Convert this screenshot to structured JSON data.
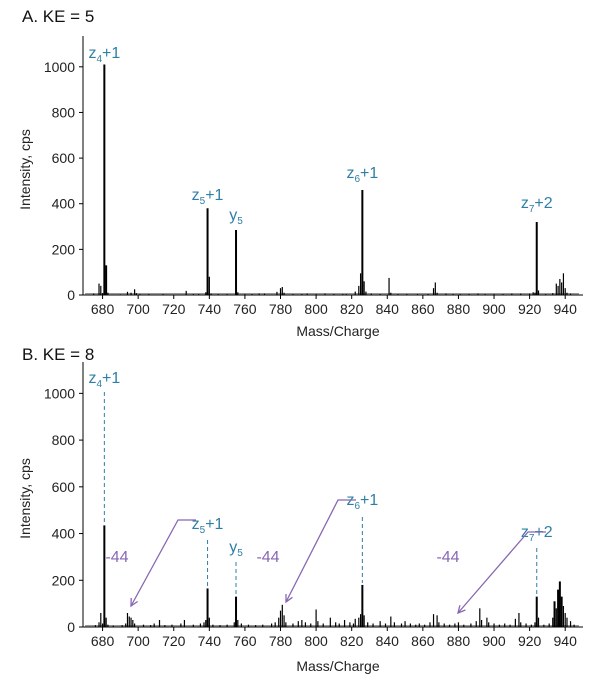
{
  "colors": {
    "annotation": "#2e7fa6",
    "loss": "#8767b4",
    "axis": "#000000",
    "peaks": "#000000"
  },
  "chart_data": [
    {
      "type": "bar",
      "title": "A. KE = 5",
      "xlabel": "Mass/Charge",
      "ylabel": "Intensity, cps",
      "xlim": [
        669,
        950
      ],
      "ylim": [
        0,
        1100
      ],
      "xticks": [
        680,
        700,
        720,
        740,
        760,
        780,
        800,
        820,
        840,
        860,
        880,
        900,
        920,
        940
      ],
      "yticks": [
        0,
        200,
        400,
        600,
        800,
        1000
      ],
      "grid": false,
      "peaks": [
        [
          675,
          6
        ],
        [
          678,
          50
        ],
        [
          679,
          40
        ],
        [
          680,
          8
        ],
        [
          681,
          1010
        ],
        [
          682,
          130
        ],
        [
          683,
          10
        ],
        [
          690,
          3
        ],
        [
          694,
          14
        ],
        [
          696,
          10
        ],
        [
          698,
          25
        ],
        [
          699,
          8
        ],
        [
          701,
          4
        ],
        [
          706,
          4
        ],
        [
          714,
          4
        ],
        [
          727,
          18
        ],
        [
          731,
          4
        ],
        [
          734,
          4
        ],
        [
          738,
          12
        ],
        [
          739,
          380
        ],
        [
          740,
          80
        ],
        [
          741,
          6
        ],
        [
          745,
          4
        ],
        [
          750,
          4
        ],
        [
          755,
          285
        ],
        [
          756,
          12
        ],
        [
          760,
          4
        ],
        [
          764,
          4
        ],
        [
          768,
          6
        ],
        [
          771,
          6
        ],
        [
          778,
          14
        ],
        [
          780,
          30
        ],
        [
          781,
          35
        ],
        [
          782,
          10
        ],
        [
          787,
          4
        ],
        [
          792,
          4
        ],
        [
          795,
          6
        ],
        [
          800,
          4
        ],
        [
          805,
          6
        ],
        [
          810,
          4
        ],
        [
          815,
          4
        ],
        [
          817,
          4
        ],
        [
          822,
          15
        ],
        [
          824,
          40
        ],
        [
          825,
          95
        ],
        [
          826,
          460
        ],
        [
          827,
          60
        ],
        [
          828,
          15
        ],
        [
          831,
          6
        ],
        [
          836,
          4
        ],
        [
          841,
          75
        ],
        [
          842,
          10
        ],
        [
          846,
          4
        ],
        [
          851,
          4
        ],
        [
          857,
          4
        ],
        [
          863,
          4
        ],
        [
          866,
          30
        ],
        [
          867,
          55
        ],
        [
          868,
          10
        ],
        [
          873,
          6
        ],
        [
          877,
          4
        ],
        [
          881,
          4
        ],
        [
          886,
          4
        ],
        [
          891,
          6
        ],
        [
          895,
          4
        ],
        [
          900,
          4
        ],
        [
          905,
          4
        ],
        [
          910,
          6
        ],
        [
          915,
          6
        ],
        [
          920,
          6
        ],
        [
          922,
          12
        ],
        [
          923,
          10
        ],
        [
          924,
          320
        ],
        [
          925,
          20
        ],
        [
          929,
          4
        ],
        [
          933,
          8
        ],
        [
          935,
          50
        ],
        [
          936,
          40
        ],
        [
          937,
          70
        ],
        [
          938,
          55
        ],
        [
          939,
          95
        ],
        [
          940,
          30
        ],
        [
          941,
          10
        ],
        [
          943,
          6
        ]
      ],
      "annotations": [
        {
          "base": "z",
          "sub": "4",
          "suffix": "+1",
          "mz": 681
        },
        {
          "base": "z",
          "sub": "5",
          "suffix": "+1",
          "mz": 739
        },
        {
          "base": "y",
          "sub": "5",
          "suffix": "",
          "mz": 755
        },
        {
          "base": "z",
          "sub": "6",
          "suffix": "+1",
          "mz": 826
        },
        {
          "base": "z",
          "sub": "7",
          "suffix": "+2",
          "mz": 924
        }
      ],
      "losses": []
    },
    {
      "type": "bar",
      "title": "B. KE = 8",
      "xlabel": "Mass/Charge",
      "ylabel": "Intensity, cps",
      "xlim": [
        669,
        950
      ],
      "ylim": [
        0,
        1100
      ],
      "xticks": [
        680,
        700,
        720,
        740,
        760,
        780,
        800,
        820,
        840,
        860,
        880,
        900,
        920,
        940
      ],
      "yticks": [
        0,
        200,
        400,
        600,
        800,
        1000
      ],
      "grid": false,
      "peaks": [
        [
          676,
          8
        ],
        [
          678,
          20
        ],
        [
          679,
          60
        ],
        [
          680,
          15
        ],
        [
          681,
          435
        ],
        [
          682,
          40
        ],
        [
          683,
          10
        ],
        [
          686,
          6
        ],
        [
          691,
          8
        ],
        [
          693,
          15
        ],
        [
          694,
          60
        ],
        [
          695,
          45
        ],
        [
          696,
          40
        ],
        [
          697,
          30
        ],
        [
          698,
          15
        ],
        [
          703,
          10
        ],
        [
          707,
          8
        ],
        [
          709,
          15
        ],
        [
          712,
          30
        ],
        [
          715,
          8
        ],
        [
          719,
          10
        ],
        [
          724,
          15
        ],
        [
          726,
          30
        ],
        [
          731,
          10
        ],
        [
          735,
          15
        ],
        [
          737,
          20
        ],
        [
          738,
          30
        ],
        [
          739,
          165
        ],
        [
          740,
          40
        ],
        [
          742,
          10
        ],
        [
          746,
          8
        ],
        [
          750,
          10
        ],
        [
          754,
          20
        ],
        [
          755,
          130
        ],
        [
          756,
          30
        ],
        [
          758,
          15
        ],
        [
          762,
          10
        ],
        [
          766,
          8
        ],
        [
          770,
          10
        ],
        [
          775,
          15
        ],
        [
          777,
          20
        ],
        [
          779,
          40
        ],
        [
          780,
          70
        ],
        [
          781,
          95
        ],
        [
          782,
          50
        ],
        [
          783,
          20
        ],
        [
          787,
          15
        ],
        [
          790,
          25
        ],
        [
          792,
          30
        ],
        [
          794,
          20
        ],
        [
          797,
          15
        ],
        [
          800,
          75
        ],
        [
          801,
          25
        ],
        [
          804,
          15
        ],
        [
          808,
          40
        ],
        [
          811,
          20
        ],
        [
          813,
          15
        ],
        [
          816,
          30
        ],
        [
          819,
          20
        ],
        [
          821,
          15
        ],
        [
          822,
          35
        ],
        [
          824,
          40
        ],
        [
          825,
          55
        ],
        [
          826,
          180
        ],
        [
          827,
          50
        ],
        [
          829,
          20
        ],
        [
          832,
          15
        ],
        [
          836,
          25
        ],
        [
          839,
          15
        ],
        [
          842,
          45
        ],
        [
          844,
          20
        ],
        [
          848,
          15
        ],
        [
          850,
          25
        ],
        [
          853,
          15
        ],
        [
          856,
          10
        ],
        [
          858,
          15
        ],
        [
          861,
          10
        ],
        [
          864,
          20
        ],
        [
          866,
          55
        ],
        [
          868,
          50
        ],
        [
          869,
          20
        ],
        [
          872,
          15
        ],
        [
          875,
          10
        ],
        [
          878,
          15
        ],
        [
          880,
          20
        ],
        [
          883,
          10
        ],
        [
          887,
          15
        ],
        [
          890,
          25
        ],
        [
          892,
          80
        ],
        [
          893,
          30
        ],
        [
          896,
          40
        ],
        [
          897,
          20
        ],
        [
          900,
          15
        ],
        [
          903,
          10
        ],
        [
          906,
          15
        ],
        [
          909,
          10
        ],
        [
          912,
          35
        ],
        [
          914,
          60
        ],
        [
          915,
          20
        ],
        [
          918,
          15
        ],
        [
          921,
          10
        ],
        [
          923,
          20
        ],
        [
          924,
          130
        ],
        [
          925,
          40
        ],
        [
          928,
          10
        ],
        [
          931,
          15
        ],
        [
          933,
          40
        ],
        [
          934,
          110
        ],
        [
          935,
          80
        ],
        [
          936,
          160
        ],
        [
          937,
          195
        ],
        [
          938,
          130
        ],
        [
          939,
          90
        ],
        [
          940,
          60
        ],
        [
          941,
          40
        ],
        [
          943,
          25
        ],
        [
          945,
          10
        ]
      ],
      "annotations": [
        {
          "base": "z",
          "sub": "4",
          "suffix": "+1",
          "mz": 681
        },
        {
          "base": "z",
          "sub": "5",
          "suffix": "+1",
          "mz": 739
        },
        {
          "base": "y",
          "sub": "5",
          "suffix": "",
          "mz": 755
        },
        {
          "base": "z",
          "sub": "6",
          "suffix": "+1",
          "mz": 826
        },
        {
          "base": "z",
          "sub": "7",
          "suffix": "+2",
          "mz": 924
        }
      ],
      "losses": [
        {
          "label": "-44",
          "from_mz": 739,
          "to_mz": 695
        },
        {
          "label": "-44",
          "from_mz": 826,
          "to_mz": 782
        },
        {
          "label": "-44",
          "from_mz": 924,
          "to_mz": 880
        }
      ]
    }
  ]
}
